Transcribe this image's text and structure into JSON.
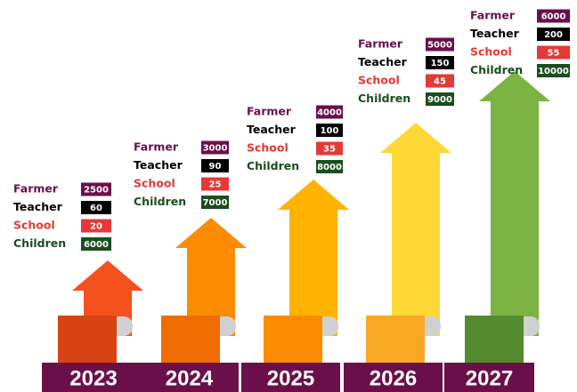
{
  "columns": [
    {
      "year": "2023",
      "rows": [
        {
          "label": "Farmer",
          "value": 2500
        },
        {
          "label": "Teacher",
          "value": 60
        },
        {
          "label": "School",
          "value": 20
        },
        {
          "label": "Children",
          "value": 6000
        }
      ]
    },
    {
      "year": "2024",
      "rows": [
        {
          "label": "Farmer",
          "value": 3000
        },
        {
          "label": "Teacher",
          "value": 90
        },
        {
          "label": "School",
          "value": 25
        },
        {
          "label": "Children",
          "value": 7000
        }
      ]
    },
    {
      "year": "2025",
      "rows": [
        {
          "label": "Farmer",
          "value": 4000
        },
        {
          "label": "Teacher",
          "value": 100
        },
        {
          "label": "School",
          "value": 35
        },
        {
          "label": "Children",
          "value": 8000
        }
      ]
    },
    {
      "year": "2026",
      "rows": [
        {
          "label": "Farmer",
          "value": 5000
        },
        {
          "label": "Teacher",
          "value": 150
        },
        {
          "label": "School",
          "value": 45
        },
        {
          "label": "Children",
          "value": 9000
        }
      ]
    },
    {
      "year": "2027",
      "rows": [
        {
          "label": "Farmer",
          "value": 6000
        },
        {
          "label": "Teacher",
          "value": 200
        },
        {
          "label": "School",
          "value": 55
        },
        {
          "label": "Children",
          "value": 10000
        }
      ]
    }
  ]
}
